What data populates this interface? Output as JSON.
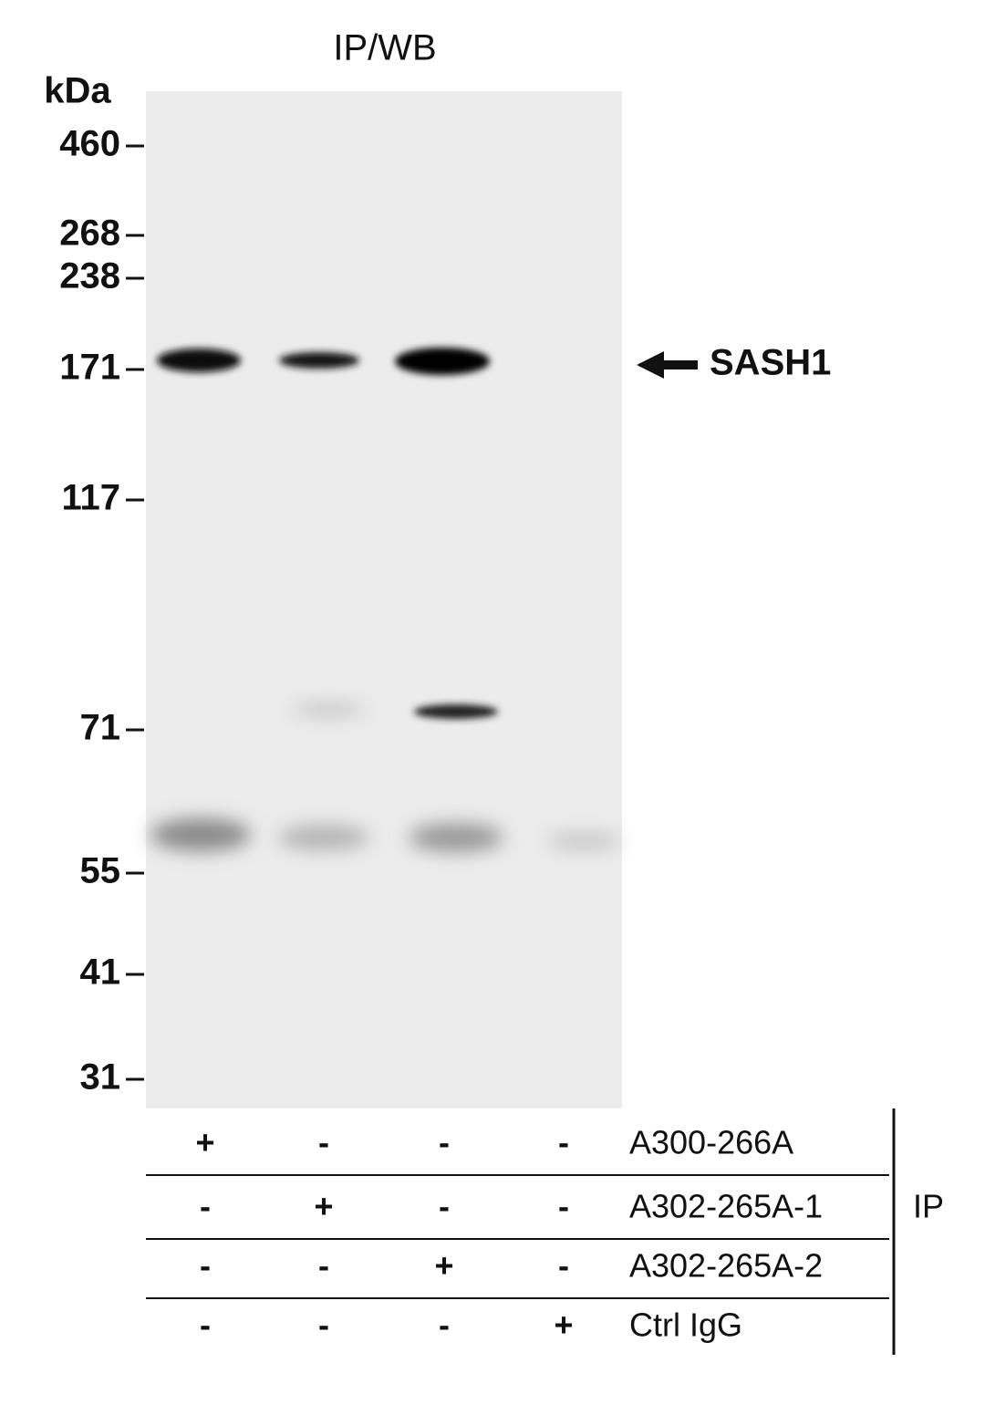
{
  "title": "IP/WB",
  "unit_label": "kDa",
  "markers": [
    "460",
    "268",
    "238",
    "171",
    "117",
    "71",
    "55",
    "41",
    "31"
  ],
  "band_label": "SASH1",
  "ip_table": {
    "rows": [
      {
        "cells": [
          "+",
          "-",
          "-",
          "-"
        ],
        "label": "A300-266A"
      },
      {
        "cells": [
          "-",
          "+",
          "-",
          "-"
        ],
        "label": "A302-265A-1"
      },
      {
        "cells": [
          "-",
          "-",
          "+",
          "-"
        ],
        "label": "A302-265A-2"
      },
      {
        "cells": [
          "-",
          "-",
          "-",
          "+"
        ],
        "label": "Ctrl IgG"
      }
    ],
    "group_label": "IP"
  }
}
